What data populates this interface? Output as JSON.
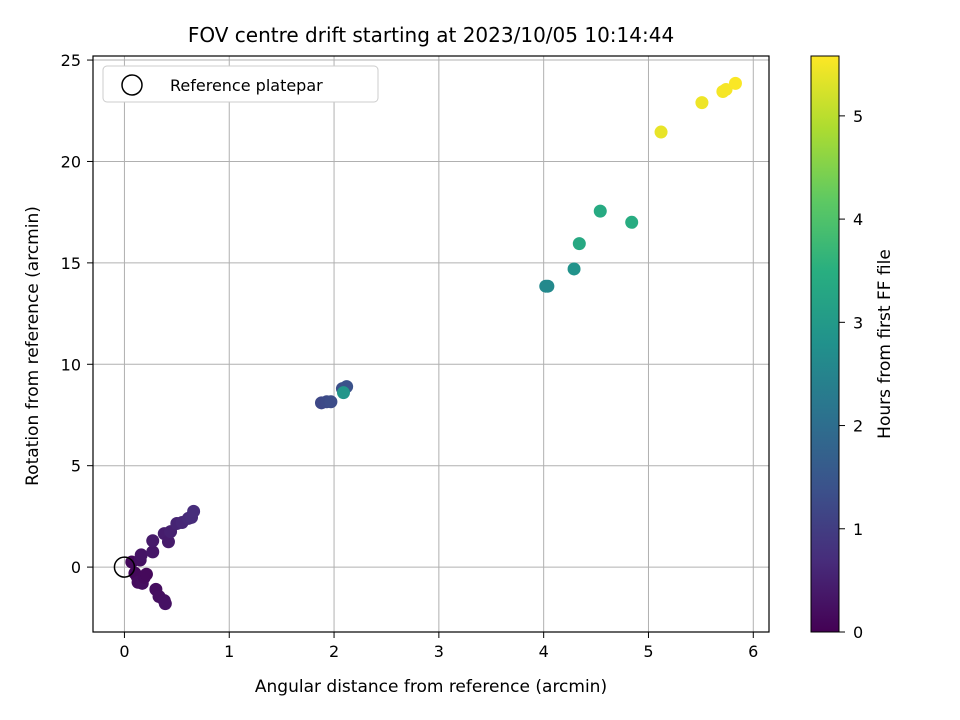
{
  "chart_data": {
    "type": "scatter",
    "title": "FOV centre drift starting at 2023/10/05 10:14:44",
    "xlabel": "Angular distance from reference (arcmin)",
    "ylabel": "Rotation from reference (arcmin)",
    "xlim": [
      -0.3,
      6.15
    ],
    "ylim": [
      -3.2,
      25.2
    ],
    "xticks": [
      0,
      1,
      2,
      3,
      4,
      5,
      6
    ],
    "yticks": [
      0,
      5,
      10,
      15,
      20,
      25
    ],
    "grid": true,
    "legend": {
      "placement": "upper-left",
      "entries": [
        "Reference platepar"
      ]
    },
    "colorbar": {
      "label": "Hours from first FF file",
      "range": [
        0,
        5.58
      ],
      "ticks": [
        0,
        1,
        2,
        3,
        4,
        5
      ],
      "colormap": "viridis"
    },
    "reference_point": {
      "x": 0,
      "y": 0
    },
    "points": [
      {
        "x": 0.07,
        "y": 0.25,
        "hours": 0.15
      },
      {
        "x": 0.1,
        "y": -0.3,
        "hours": 0.1
      },
      {
        "x": 0.12,
        "y": -0.45,
        "hours": 0.12
      },
      {
        "x": 0.13,
        "y": -0.75,
        "hours": 0.18
      },
      {
        "x": 0.17,
        "y": -0.8,
        "hours": 0.2
      },
      {
        "x": 0.19,
        "y": -0.5,
        "hours": 0.15
      },
      {
        "x": 0.21,
        "y": -0.35,
        "hours": 0.13
      },
      {
        "x": 0.15,
        "y": 0.35,
        "hours": 0.25
      },
      {
        "x": 0.16,
        "y": 0.6,
        "hours": 0.3
      },
      {
        "x": 0.27,
        "y": 0.75,
        "hours": 0.35
      },
      {
        "x": 0.27,
        "y": 1.3,
        "hours": 0.4
      },
      {
        "x": 0.3,
        "y": -1.1,
        "hours": 0.2
      },
      {
        "x": 0.33,
        "y": -1.45,
        "hours": 0.22
      },
      {
        "x": 0.38,
        "y": -1.65,
        "hours": 0.24
      },
      {
        "x": 0.39,
        "y": -1.8,
        "hours": 0.26
      },
      {
        "x": 0.38,
        "y": 1.65,
        "hours": 0.45
      },
      {
        "x": 0.42,
        "y": 1.25,
        "hours": 0.42
      },
      {
        "x": 0.44,
        "y": 1.75,
        "hours": 0.5
      },
      {
        "x": 0.5,
        "y": 2.15,
        "hours": 0.55
      },
      {
        "x": 0.55,
        "y": 2.2,
        "hours": 0.6
      },
      {
        "x": 0.61,
        "y": 2.4,
        "hours": 0.65
      },
      {
        "x": 0.64,
        "y": 2.45,
        "hours": 0.68
      },
      {
        "x": 0.66,
        "y": 2.75,
        "hours": 0.7
      },
      {
        "x": 1.88,
        "y": 8.1,
        "hours": 1.2
      },
      {
        "x": 1.93,
        "y": 8.15,
        "hours": 1.25
      },
      {
        "x": 1.97,
        "y": 8.15,
        "hours": 1.3
      },
      {
        "x": 2.08,
        "y": 8.8,
        "hours": 1.35
      },
      {
        "x": 2.12,
        "y": 8.9,
        "hours": 1.4
      },
      {
        "x": 2.09,
        "y": 8.6,
        "hours": 2.9
      },
      {
        "x": 4.02,
        "y": 13.85,
        "hours": 2.6
      },
      {
        "x": 4.04,
        "y": 13.85,
        "hours": 2.62
      },
      {
        "x": 4.29,
        "y": 14.7,
        "hours": 2.85
      },
      {
        "x": 4.34,
        "y": 15.95,
        "hours": 3.35
      },
      {
        "x": 4.54,
        "y": 17.55,
        "hours": 3.4
      },
      {
        "x": 4.84,
        "y": 17.0,
        "hours": 3.45
      },
      {
        "x": 5.12,
        "y": 21.45,
        "hours": 5.4
      },
      {
        "x": 5.51,
        "y": 22.9,
        "hours": 5.45
      },
      {
        "x": 5.71,
        "y": 23.45,
        "hours": 5.5
      },
      {
        "x": 5.74,
        "y": 23.55,
        "hours": 5.52
      },
      {
        "x": 5.83,
        "y": 23.85,
        "hours": 5.55
      }
    ]
  }
}
